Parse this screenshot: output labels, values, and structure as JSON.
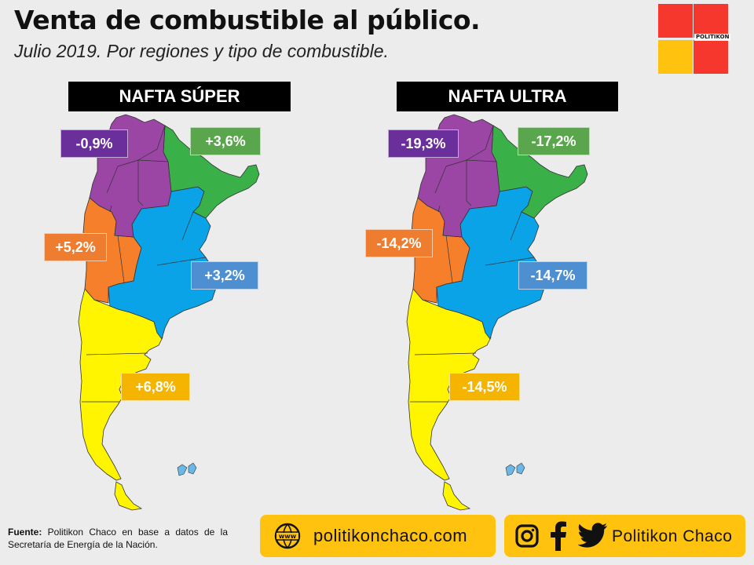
{
  "title": "Venta de combustible al público.",
  "subtitle": "Julio 2019. Por regiones y tipo de combustible.",
  "logo_text": "POLITIKON",
  "maps": [
    {
      "header": "NAFTA SÚPER",
      "regions": {
        "noa": "-0,9%",
        "nea": "+3,6%",
        "cuyo": "+5,2%",
        "pampeana": "+3,2%",
        "patagonia": "+6,8%"
      }
    },
    {
      "header": "NAFTA ULTRA",
      "regions": {
        "noa": "-19,3%",
        "nea": "-17,2%",
        "cuyo": "-14,2%",
        "pampeana": "-14,7%",
        "patagonia": "-14,5%"
      }
    }
  ],
  "colors": {
    "noa": "#9b45a5",
    "nea": "#3ab049",
    "cuyo": "#f57f2a",
    "pampeana": "#0aa3e8",
    "patagonia": "#fff500",
    "label_noa": "#6a2f9a",
    "label_nea": "#5aa64c",
    "label_cuyo": "#ef7d2f",
    "label_pampeana": "#4e8fd1",
    "label_patagonia": "#f4b400"
  },
  "footer": {
    "source_label": "Fuente:",
    "source_text": "Politikon Chaco en base a datos de la Secretaría de Energía de la Nación.",
    "www_icon_text": "www",
    "website": "politikonchaco.com",
    "social_name": "Politikon Chaco"
  }
}
